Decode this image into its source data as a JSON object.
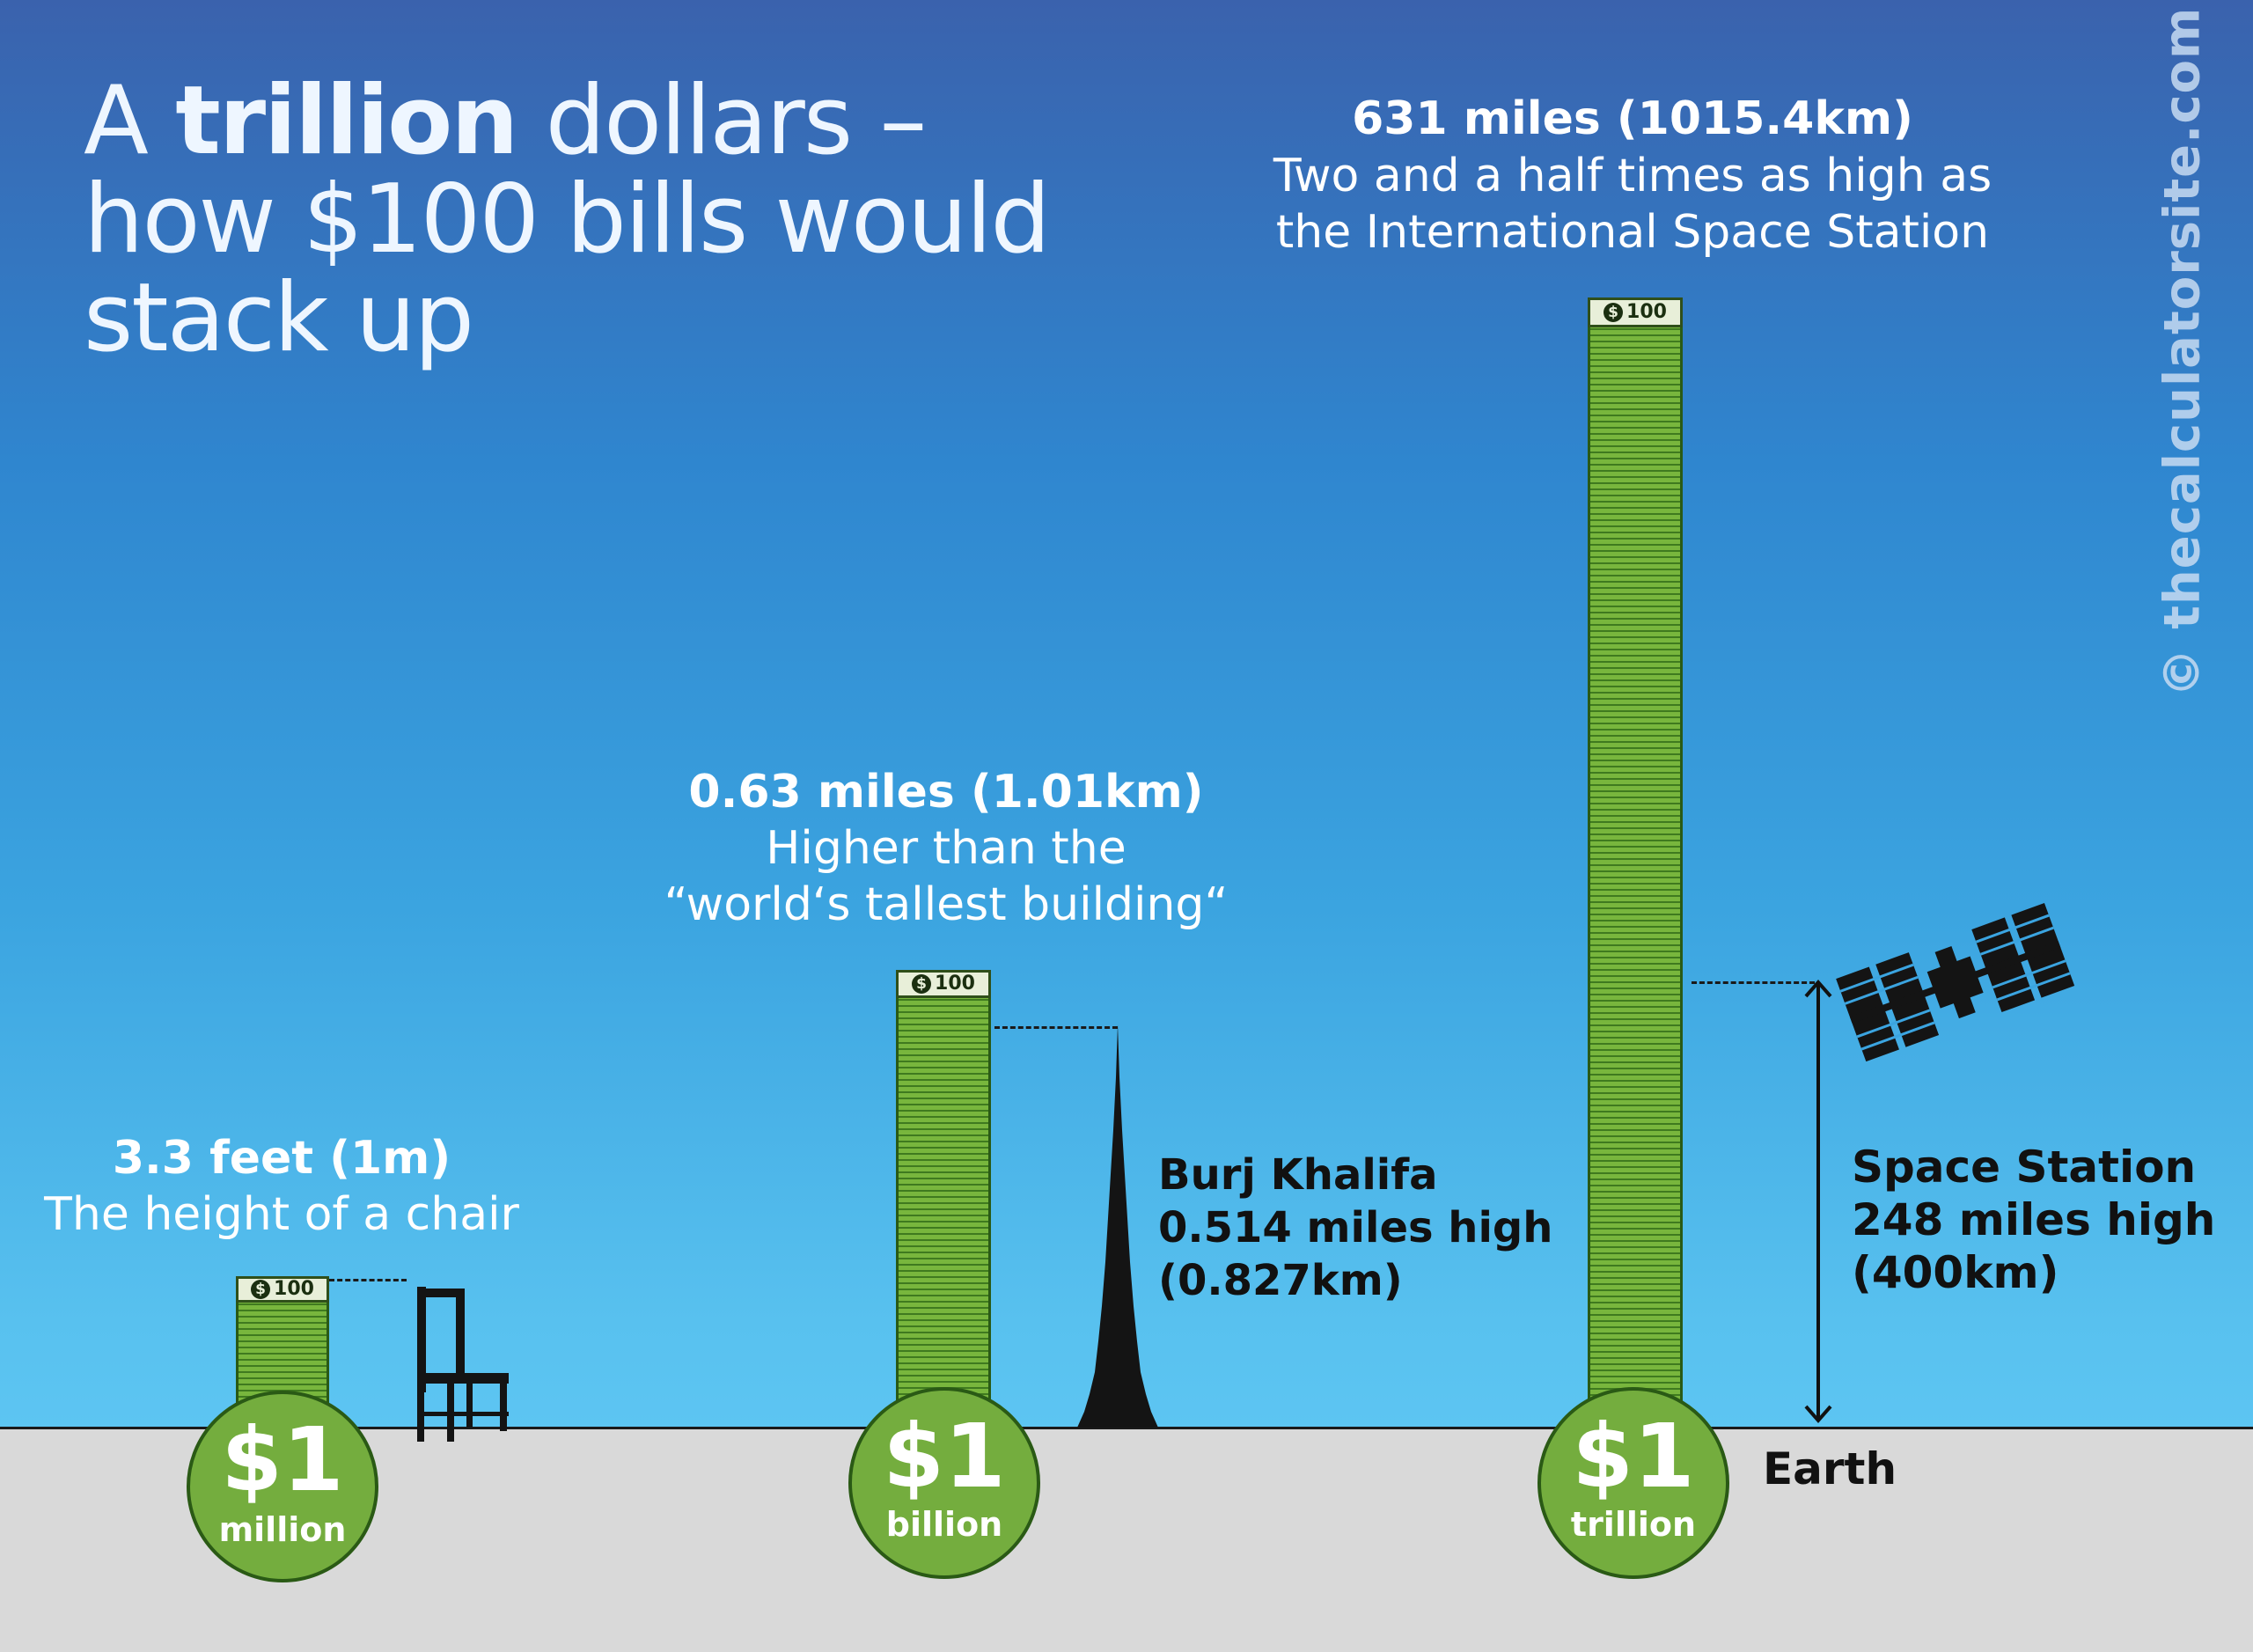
{
  "title": {
    "part1": "A ",
    "bold": "trillion",
    "part2": " dollars –",
    "line2": "how $100 bills would",
    "line3": "stack up"
  },
  "watermark": "© thecalculatorsite.com",
  "bill_label": "100",
  "bill_symbol": "$",
  "stacks": [
    {
      "amount": "$1",
      "unit": "million",
      "height_value": "3.3 feet (1m)",
      "description": "The height of a chair",
      "comparison_icon": "chair-icon"
    },
    {
      "amount": "$1",
      "unit": "billion",
      "height_value": "0.63 miles (1.01km)",
      "description_line1": "Higher than the",
      "description_line2": "“world‘s tallest building“",
      "comparison_icon": "burj-khalifa-icon",
      "comparison_label": [
        "Burj Khalifa",
        "0.514 miles high",
        "(0.827km)"
      ]
    },
    {
      "amount": "$1",
      "unit": "trillion",
      "height_value": "631 miles (1015.4km)",
      "description_line1": "Two and a half times as high as",
      "description_line2": "the International Space Station",
      "comparison_icon": "space-station-icon",
      "comparison_label": [
        "Space Station",
        "248 miles high",
        "(400km)"
      ]
    }
  ],
  "ground_label": "Earth",
  "colors": {
    "sky_top": "#3a62ad",
    "sky_bottom": "#5ec6f3",
    "money_green": "#78b63d",
    "coin_green": "#74ad3e",
    "ground": "#d9d9d9"
  }
}
